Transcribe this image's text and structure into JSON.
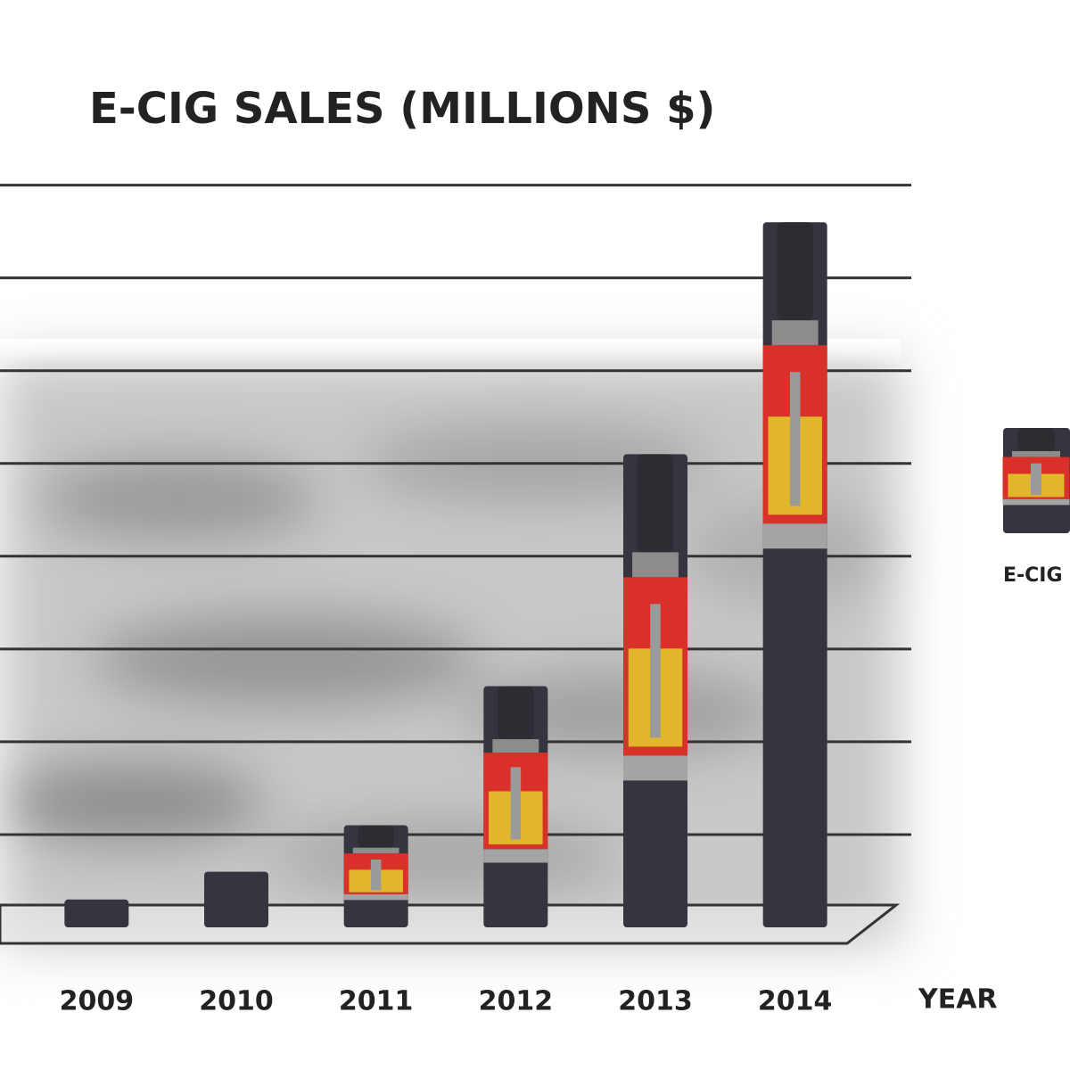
{
  "chart_data": {
    "type": "bar",
    "title": "E-CIG SALES (MILLIONS $)",
    "x_label": "YEAR",
    "categories": [
      "2009",
      "2010",
      "2011",
      "2012",
      "2013",
      "2014"
    ],
    "series": [
      {
        "name": "E-CIG",
        "color": "#35353f",
        "values": [
          0.3,
          0.6,
          1.1,
          2.6,
          5.1,
          7.6
        ]
      }
    ],
    "ylim": [
      0,
      8.4
    ],
    "yticks": [
      1,
      2,
      3,
      4,
      5,
      6,
      7,
      8
    ],
    "grid": true
  }
}
